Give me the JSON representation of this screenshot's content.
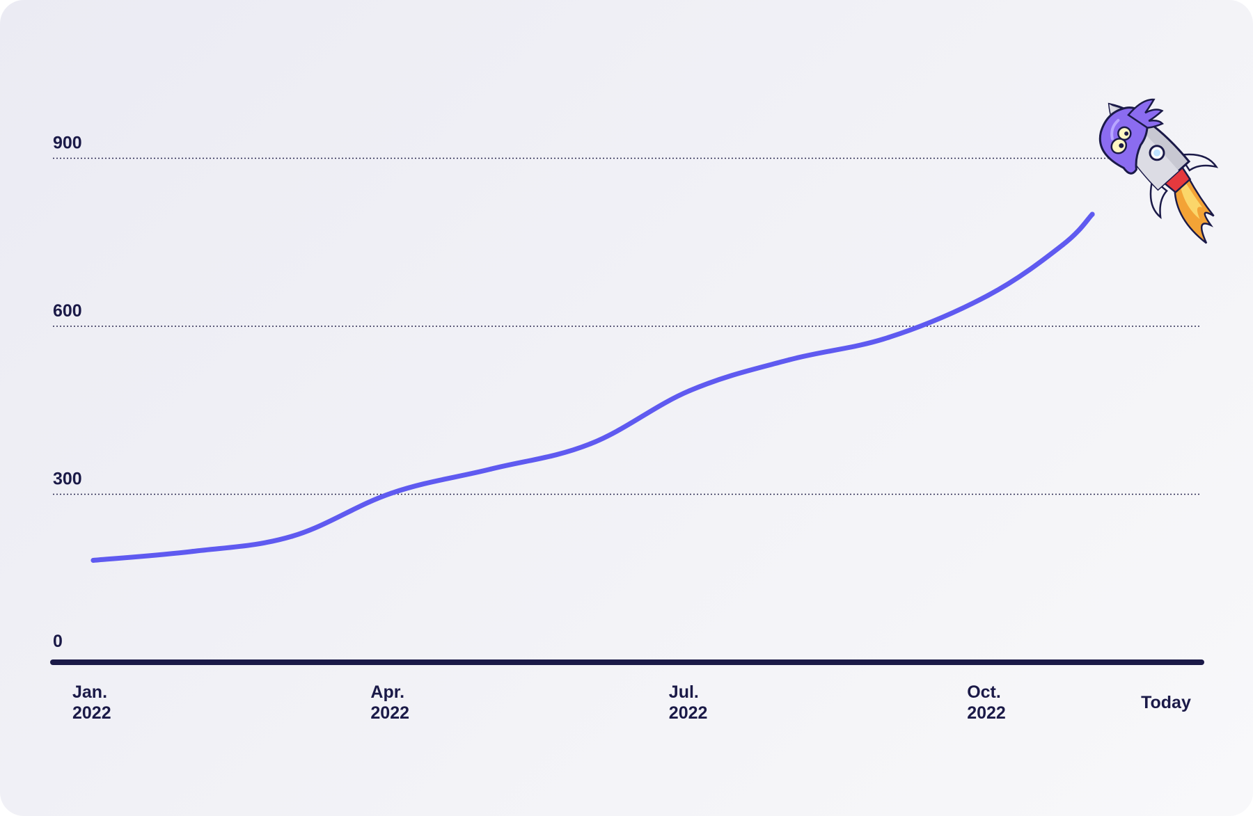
{
  "chart_data": {
    "type": "line",
    "title": "",
    "xlabel": "",
    "ylabel": "",
    "ylim": [
      0,
      1100
    ],
    "y_ticks": [
      {
        "value": 0,
        "label": "0"
      },
      {
        "value": 300,
        "label": "300"
      },
      {
        "value": 600,
        "label": "600"
      },
      {
        "value": 900,
        "label": "900"
      }
    ],
    "x_ticks": [
      {
        "x": 0,
        "line1": "Jan.",
        "line2": "2022"
      },
      {
        "x": 3,
        "line1": "Apr.",
        "line2": "2022"
      },
      {
        "x": 6,
        "line1": "Jul.",
        "line2": "2022"
      },
      {
        "x": 9,
        "line1": "Oct.",
        "line2": "2022"
      },
      {
        "x": 10.75,
        "line1": "Today",
        "line2": ""
      }
    ],
    "grid": true,
    "series": [
      {
        "color": "#5f5af0",
        "x": [
          0,
          1,
          2,
          3,
          4,
          5,
          6,
          7,
          8,
          9,
          9.75,
          10.05
        ],
        "values": [
          182,
          198,
          225,
          302,
          345,
          390,
          485,
          540,
          580,
          655,
          745,
          800
        ]
      }
    ]
  },
  "mascot": {
    "icon": "rocket-mascot-icon"
  },
  "colors": {
    "line": "#5f5af0",
    "axis": "#1b1a48",
    "text": "#1b1a48"
  }
}
